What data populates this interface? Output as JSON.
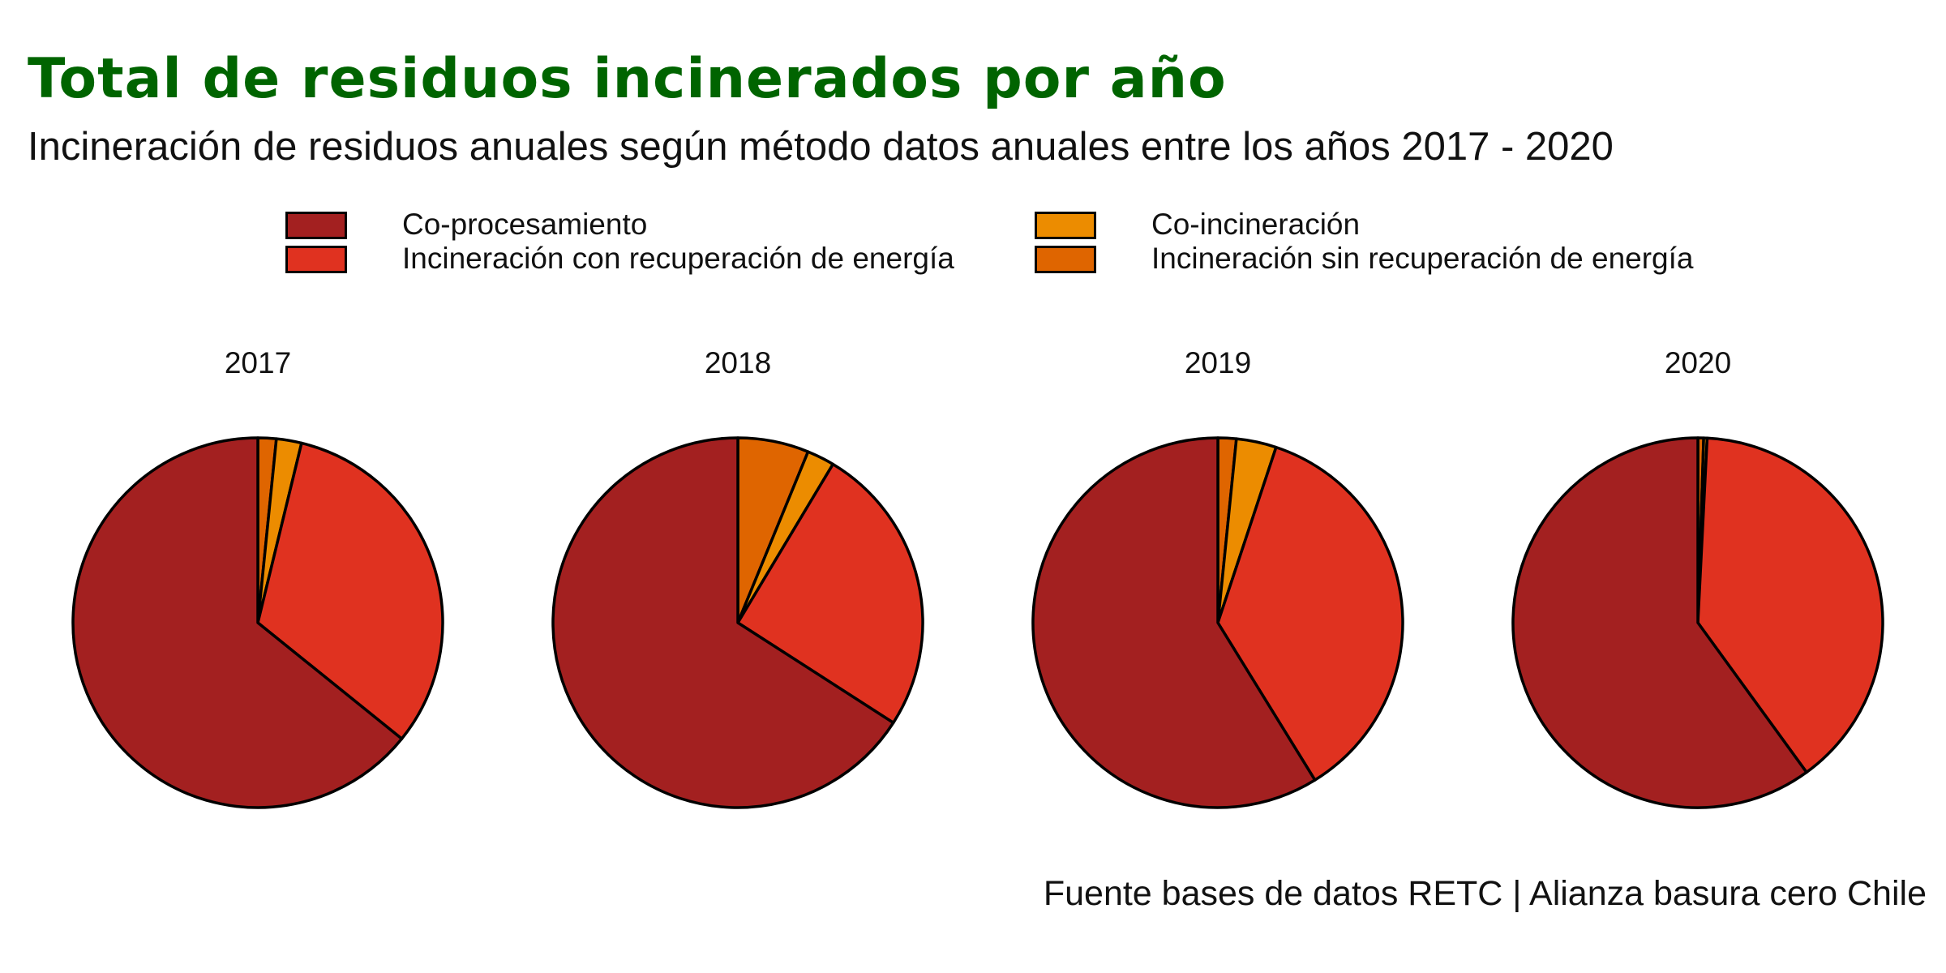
{
  "header": {
    "title": "Total de residuos incinerados por año",
    "subtitle": "Incineración de residuos anuales según método datos anuales entre los años 2017 - 2020"
  },
  "legend": {
    "items": [
      {
        "label": "Co-procesamiento",
        "color": "#A32020"
      },
      {
        "label": "Co-incineración",
        "color": "#EC8C00"
      },
      {
        "label": "Incineración con recuperación de energía",
        "color": "#E03220"
      },
      {
        "label": "Incineración sin recuperación de energía",
        "color": "#DF6500"
      }
    ]
  },
  "chart_data": {
    "type": "pie",
    "categories": [
      "Incineración sin recuperación de energía",
      "Co-incineración",
      "Incineración con recuperación de energía",
      "Co-procesamiento"
    ],
    "colors": [
      "#DF6500",
      "#EC8C00",
      "#E03220",
      "#A32020"
    ],
    "panels": [
      {
        "year": "2017",
        "values": [
          1.6,
          2.2,
          32.0,
          64.2
        ]
      },
      {
        "year": "2018",
        "values": [
          6.2,
          2.4,
          25.5,
          65.9
        ]
      },
      {
        "year": "2019",
        "values": [
          1.6,
          3.5,
          36.1,
          58.8
        ]
      },
      {
        "year": "2020",
        "values": [
          0.5,
          0.3,
          39.2,
          60.0
        ]
      }
    ]
  },
  "footer": {
    "source": "Fuente bases de datos RETC | Alianza basura cero Chile"
  }
}
